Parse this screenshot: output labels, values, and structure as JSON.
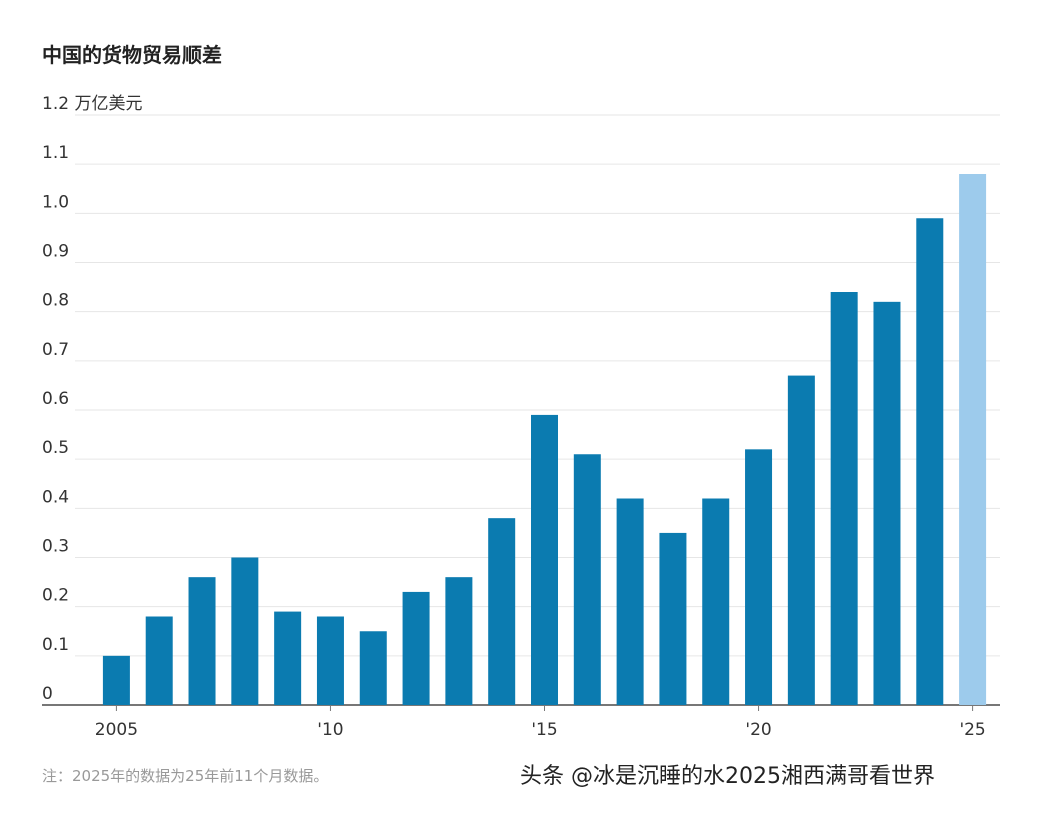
{
  "chart_data": {
    "type": "bar",
    "title": "中国的货物贸易顺差",
    "categories": [
      "2005",
      null,
      null,
      null,
      null,
      "'10",
      null,
      null,
      null,
      null,
      "'15",
      null,
      null,
      null,
      null,
      "'20",
      null,
      null,
      null,
      null,
      "'25"
    ],
    "values": [
      0.1,
      0.18,
      0.26,
      0.3,
      0.19,
      0.18,
      0.15,
      0.23,
      0.26,
      0.38,
      0.59,
      0.51,
      0.42,
      0.35,
      0.42,
      0.52,
      0.67,
      0.84,
      0.82,
      0.99,
      1.08
    ],
    "colors": [
      "#0b7bb0",
      "#0b7bb0",
      "#0b7bb0",
      "#0b7bb0",
      "#0b7bb0",
      "#0b7bb0",
      "#0b7bb0",
      "#0b7bb0",
      "#0b7bb0",
      "#0b7bb0",
      "#0b7bb0",
      "#0b7bb0",
      "#0b7bb0",
      "#0b7bb0",
      "#0b7bb0",
      "#0b7bb0",
      "#0b7bb0",
      "#0b7bb0",
      "#0b7bb0",
      "#0b7bb0",
      "#9dcbec"
    ],
    "ylim": [
      0,
      1.2
    ],
    "yticks": [
      0,
      0.1,
      0.2,
      0.3,
      0.4,
      0.5,
      0.6,
      0.7,
      0.8,
      0.9,
      {
        "value": 1,
        "label": "1.0"
      },
      1.1,
      {
        "value": 1.2,
        "label": "1.2 万亿美元"
      }
    ],
    "grid": true,
    "note": "注：2025年的数据为25年前11个月数据。",
    "watermark": "头条 @冰是沉睡的水2025湘西满哥看世界"
  }
}
